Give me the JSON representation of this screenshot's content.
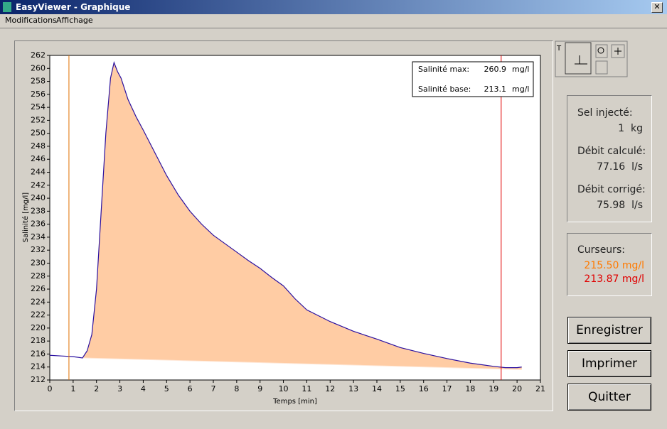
{
  "window": {
    "title": "EasyViewer - Graphique",
    "menu": [
      "Modifications",
      "Affichage"
    ]
  },
  "chart_data": {
    "type": "line",
    "ylabel": "Salinité [mg/l]",
    "xlabel": "Temps [min]",
    "xlim": [
      0,
      21
    ],
    "xticks": [
      0,
      1,
      2,
      3,
      4,
      5,
      6,
      7,
      8,
      9,
      10,
      11,
      12,
      13,
      14,
      15,
      16,
      17,
      18,
      19,
      20,
      21
    ],
    "ylim": [
      212,
      262
    ],
    "yticks": [
      212,
      214,
      216,
      218,
      220,
      222,
      224,
      226,
      228,
      230,
      232,
      234,
      236,
      238,
      240,
      242,
      244,
      246,
      248,
      250,
      252,
      254,
      256,
      258,
      260,
      262
    ],
    "series": [
      {
        "color": "#2a10a0",
        "fill": "#ffcca4",
        "x": [
          0,
          0.5,
          1,
          1.4,
          1.6,
          1.8,
          2,
          2.2,
          2.4,
          2.6,
          2.75,
          2.9,
          3.05,
          3.35,
          3.7,
          4,
          4.5,
          5,
          5.5,
          6,
          6.5,
          7,
          7.5,
          8,
          8.5,
          9,
          9.5,
          10,
          10.5,
          11,
          12,
          13,
          14,
          15,
          16,
          17,
          18,
          19,
          19.5,
          20,
          20.2
        ],
        "values": [
          215.8,
          215.7,
          215.6,
          215.4,
          216.5,
          219,
          226,
          238,
          250,
          258.5,
          260.9,
          259.5,
          258.5,
          255.2,
          252.5,
          250.5,
          247,
          243.5,
          240.5,
          238,
          236,
          234.3,
          233,
          231.7,
          230.4,
          229.2,
          227.8,
          226.5,
          224.5,
          222.8,
          221,
          219.5,
          218.3,
          217,
          216.1,
          215.3,
          214.6,
          214.1,
          213.9,
          213.9,
          214
        ]
      }
    ],
    "baseline": {
      "x": [
        1.4,
        20.2
      ],
      "values": [
        215.4,
        213.6
      ]
    },
    "cursors": [
      {
        "x": 0.82,
        "color": "#e07000"
      },
      {
        "x": 19.32,
        "color": "#e00000"
      }
    ],
    "info": [
      {
        "label": "Salinité max:",
        "value": 260.9,
        "unit": "mg/l"
      },
      {
        "label": "Salinité base:",
        "value": 213.1,
        "unit": "mg/l"
      }
    ]
  },
  "results": [
    {
      "label": "Sel injecté:",
      "value": 1,
      "unit": "kg"
    },
    {
      "label": "Débit calculé:",
      "value": 77.16,
      "unit": "l/s"
    },
    {
      "label": "Débit corrigé:",
      "value": 75.98,
      "unit": "l/s"
    }
  ],
  "cursors_panel": {
    "title": "Curseurs:",
    "values": [
      "215.50 mg/l",
      "213.87 mg/l"
    ],
    "colors": [
      "#ff7a00",
      "#e00000"
    ]
  },
  "buttons": [
    "Enregistrer",
    "Imprimer",
    "Quitter"
  ]
}
